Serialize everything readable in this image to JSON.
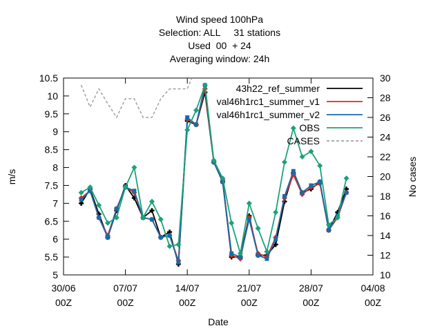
{
  "chart_data": {
    "type": "line",
    "title": [
      "Wind speed 100hPa",
      "Selection: ALL     31 stations",
      "Used  00  + 24",
      "Averaging window: 24h"
    ],
    "xlabel": "Date",
    "ylabel": "m/s",
    "y2label": "No cases",
    "xlim": [
      0,
      35
    ],
    "xticks": [
      {
        "value": 0,
        "label": "30/06 00Z"
      },
      {
        "value": 7,
        "label": "07/07 00Z"
      },
      {
        "value": 14,
        "label": "14/07 00Z"
      },
      {
        "value": 21,
        "label": "21/07 00Z"
      },
      {
        "value": 28,
        "label": "28/07 00Z"
      },
      {
        "value": 35,
        "label": "04/08 00Z"
      }
    ],
    "ylim": [
      5,
      10.5
    ],
    "yticks": [
      5,
      5.5,
      6,
      6.5,
      7,
      7.5,
      8,
      8.5,
      9,
      9.5,
      10,
      10.5
    ],
    "y2lim": [
      10,
      30
    ],
    "y2ticks": [
      10,
      12,
      14,
      16,
      18,
      20,
      22,
      24,
      26,
      28,
      30
    ],
    "legend": "upper right",
    "x": [
      2,
      3,
      4,
      5,
      6,
      7,
      8,
      9,
      10,
      11,
      12,
      13,
      14,
      15,
      16,
      17,
      18,
      19,
      20,
      21,
      22,
      23,
      24,
      25,
      26,
      27,
      28,
      29,
      30,
      31,
      32
    ],
    "series": [
      {
        "name": "43h22_ref_summer",
        "color": "#000000",
        "values": [
          7.0,
          7.4,
          6.7,
          6.05,
          6.8,
          7.5,
          7.15,
          6.6,
          6.8,
          6.05,
          6.2,
          5.3,
          9.3,
          9.2,
          10.1,
          8.15,
          7.6,
          5.5,
          5.5,
          6.65,
          5.55,
          5.55,
          5.85,
          7.05,
          7.85,
          7.3,
          7.4,
          7.6,
          6.25,
          6.75,
          7.4
        ]
      },
      {
        "name": "val46h1rc1_summer_v1",
        "color": "#dd2a1c",
        "values": [
          7.15,
          7.35,
          6.6,
          6.1,
          6.85,
          7.45,
          7.3,
          6.6,
          6.55,
          6.05,
          6.1,
          5.4,
          9.35,
          9.2,
          10.2,
          8.15,
          7.65,
          5.55,
          5.45,
          6.6,
          5.6,
          5.5,
          6.05,
          7.15,
          7.8,
          7.25,
          7.45,
          7.55,
          6.25,
          6.6,
          7.3
        ]
      },
      {
        "name": "val46h1rc1_summer_v2",
        "color": "#1a6aa8",
        "values": [
          7.1,
          7.35,
          6.6,
          6.05,
          6.85,
          7.45,
          7.35,
          6.6,
          6.55,
          6.05,
          6.1,
          5.35,
          9.4,
          9.2,
          10.3,
          8.15,
          7.6,
          5.6,
          5.5,
          6.55,
          5.55,
          5.45,
          6.0,
          7.2,
          7.9,
          7.3,
          7.5,
          7.6,
          6.25,
          6.65,
          7.3
        ]
      },
      {
        "name": "OBS",
        "color": "#1aa27a",
        "values": [
          7.3,
          7.45,
          6.95,
          6.45,
          6.6,
          7.45,
          8.0,
          6.6,
          7.05,
          6.55,
          5.8,
          5.85,
          9.05,
          9.6,
          10.3,
          8.2,
          7.7,
          6.45,
          5.6,
          7.0,
          6.3,
          5.65,
          6.75,
          8.15,
          9.1,
          8.3,
          8.45,
          8.05,
          6.4,
          6.6,
          7.7
        ]
      },
      {
        "name": "CASES",
        "color": "#a0a0a0",
        "axis": "y2",
        "dashed": true,
        "values": [
          29.3,
          27.05,
          28.9,
          27.4,
          26.0,
          27.9,
          27.9,
          26.0,
          26.0,
          27.9,
          28.9,
          28.9,
          28.9,
          31,
          31,
          31,
          31,
          31,
          31,
          31,
          31,
          31,
          31,
          31,
          31,
          31,
          31,
          31,
          31,
          31,
          31
        ]
      }
    ]
  }
}
